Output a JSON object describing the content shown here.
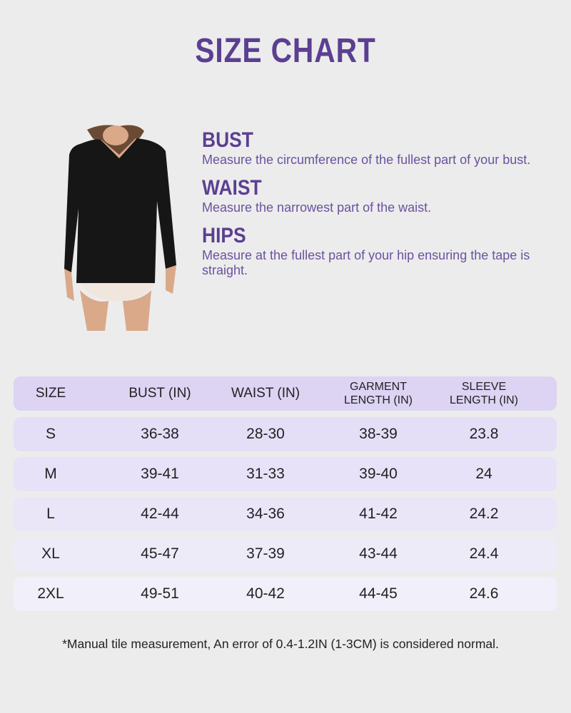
{
  "title": "SIZE CHART",
  "measurements": [
    {
      "label": "BUST",
      "description": "Measure the circumference of the fullest part of your bust."
    },
    {
      "label": "WAIST",
      "description": "Measure the narrowest part of the waist."
    },
    {
      "label": "HIPS",
      "description": "Measure at the fullest part of your hip ensuring the tape is straight."
    }
  ],
  "table": {
    "headers": [
      "SIZE",
      "BUST (IN)",
      "WAIST (IN)",
      "GARMENT\nLENGTH (IN)",
      "SLEEVE\nLENGTH (IN)"
    ],
    "rows": [
      [
        "S",
        "36-38",
        "28-30",
        "38-39",
        "23.8"
      ],
      [
        "M",
        "39-41",
        "31-33",
        "39-40",
        "24"
      ],
      [
        "L",
        "42-44",
        "34-36",
        "41-42",
        "24.2"
      ],
      [
        "XL",
        "45-47",
        "37-39",
        "43-44",
        "24.4"
      ],
      [
        "2XL",
        "49-51",
        "40-42",
        "44-45",
        "24.6"
      ]
    ]
  },
  "note": "*Manual tile measurement, An error of 0.4-1.2IN (1-3CM) is considered normal.",
  "colors": {
    "accent": "#5b3f91",
    "header_bg": "#ddd3f3",
    "row_bg": "#e6e0f7",
    "background": "#ececec"
  }
}
